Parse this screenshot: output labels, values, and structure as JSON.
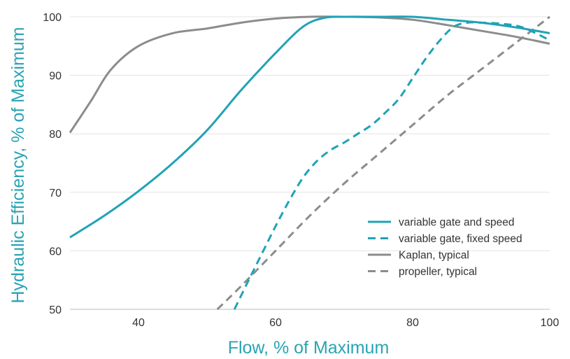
{
  "chart_data": {
    "type": "line",
    "xlabel": "Flow, % of Maximum",
    "ylabel": "Hydraulic Efficiency, % of Maximum",
    "xlim": [
      30,
      100
    ],
    "ylim": [
      50,
      100
    ],
    "xticks": [
      40,
      60,
      80,
      100
    ],
    "yticks": [
      50,
      60,
      70,
      80,
      90,
      100
    ],
    "grid": "horizontal",
    "legend_position": "lower-right",
    "colors": {
      "teal": "#1fa3b5",
      "gray": "#8c8c8c",
      "title": "#2aa3b3"
    },
    "series": [
      {
        "name": "variable gate and speed",
        "color": "#1fa3b5",
        "dash": "solid",
        "x": [
          30,
          35,
          40,
          45,
          50,
          55,
          60,
          64,
          67,
          70,
          75,
          80,
          85,
          90,
          95,
          100
        ],
        "y": [
          62.3,
          66.0,
          70.2,
          75.0,
          80.6,
          87.5,
          93.8,
          98.3,
          99.8,
          100,
          100,
          100,
          99.5,
          99.0,
          98.2,
          97.2
        ]
      },
      {
        "name": "variable gate, fixed speed",
        "color": "#1fa3b5",
        "dash": "dashed",
        "x": [
          54,
          56,
          58,
          60,
          62,
          64,
          66,
          68,
          70,
          72,
          74,
          76,
          78,
          80,
          82,
          84,
          86,
          88,
          90,
          93,
          96,
          100
        ],
        "y": [
          50,
          54.8,
          59.5,
          64.2,
          68.6,
          72.5,
          75.3,
          77.2,
          78.5,
          80.0,
          81.5,
          83.6,
          86.0,
          89.5,
          93.0,
          96.0,
          98.3,
          99.0,
          99.0,
          98.8,
          98.2,
          96.0
        ]
      },
      {
        "name": "Kaplan, typical",
        "color": "#8c8c8c",
        "dash": "solid",
        "x": [
          30,
          33,
          36,
          40,
          45,
          50,
          55,
          60,
          65,
          70,
          75,
          80,
          85,
          90,
          95,
          100
        ],
        "y": [
          80.2,
          85.5,
          91.0,
          95.0,
          97.2,
          98.0,
          99.0,
          99.7,
          100,
          100,
          99.9,
          99.5,
          98.6,
          97.6,
          96.6,
          95.4
        ]
      },
      {
        "name": "propeller, typical",
        "color": "#8c8c8c",
        "dash": "dashed",
        "x": [
          51.5,
          55,
          60,
          65,
          70,
          75,
          80,
          85,
          90,
          95,
          100
        ],
        "y": [
          50,
          54.0,
          60.0,
          66.0,
          71.5,
          76.5,
          81.5,
          86.5,
          91.0,
          95.5,
          100
        ]
      }
    ]
  }
}
